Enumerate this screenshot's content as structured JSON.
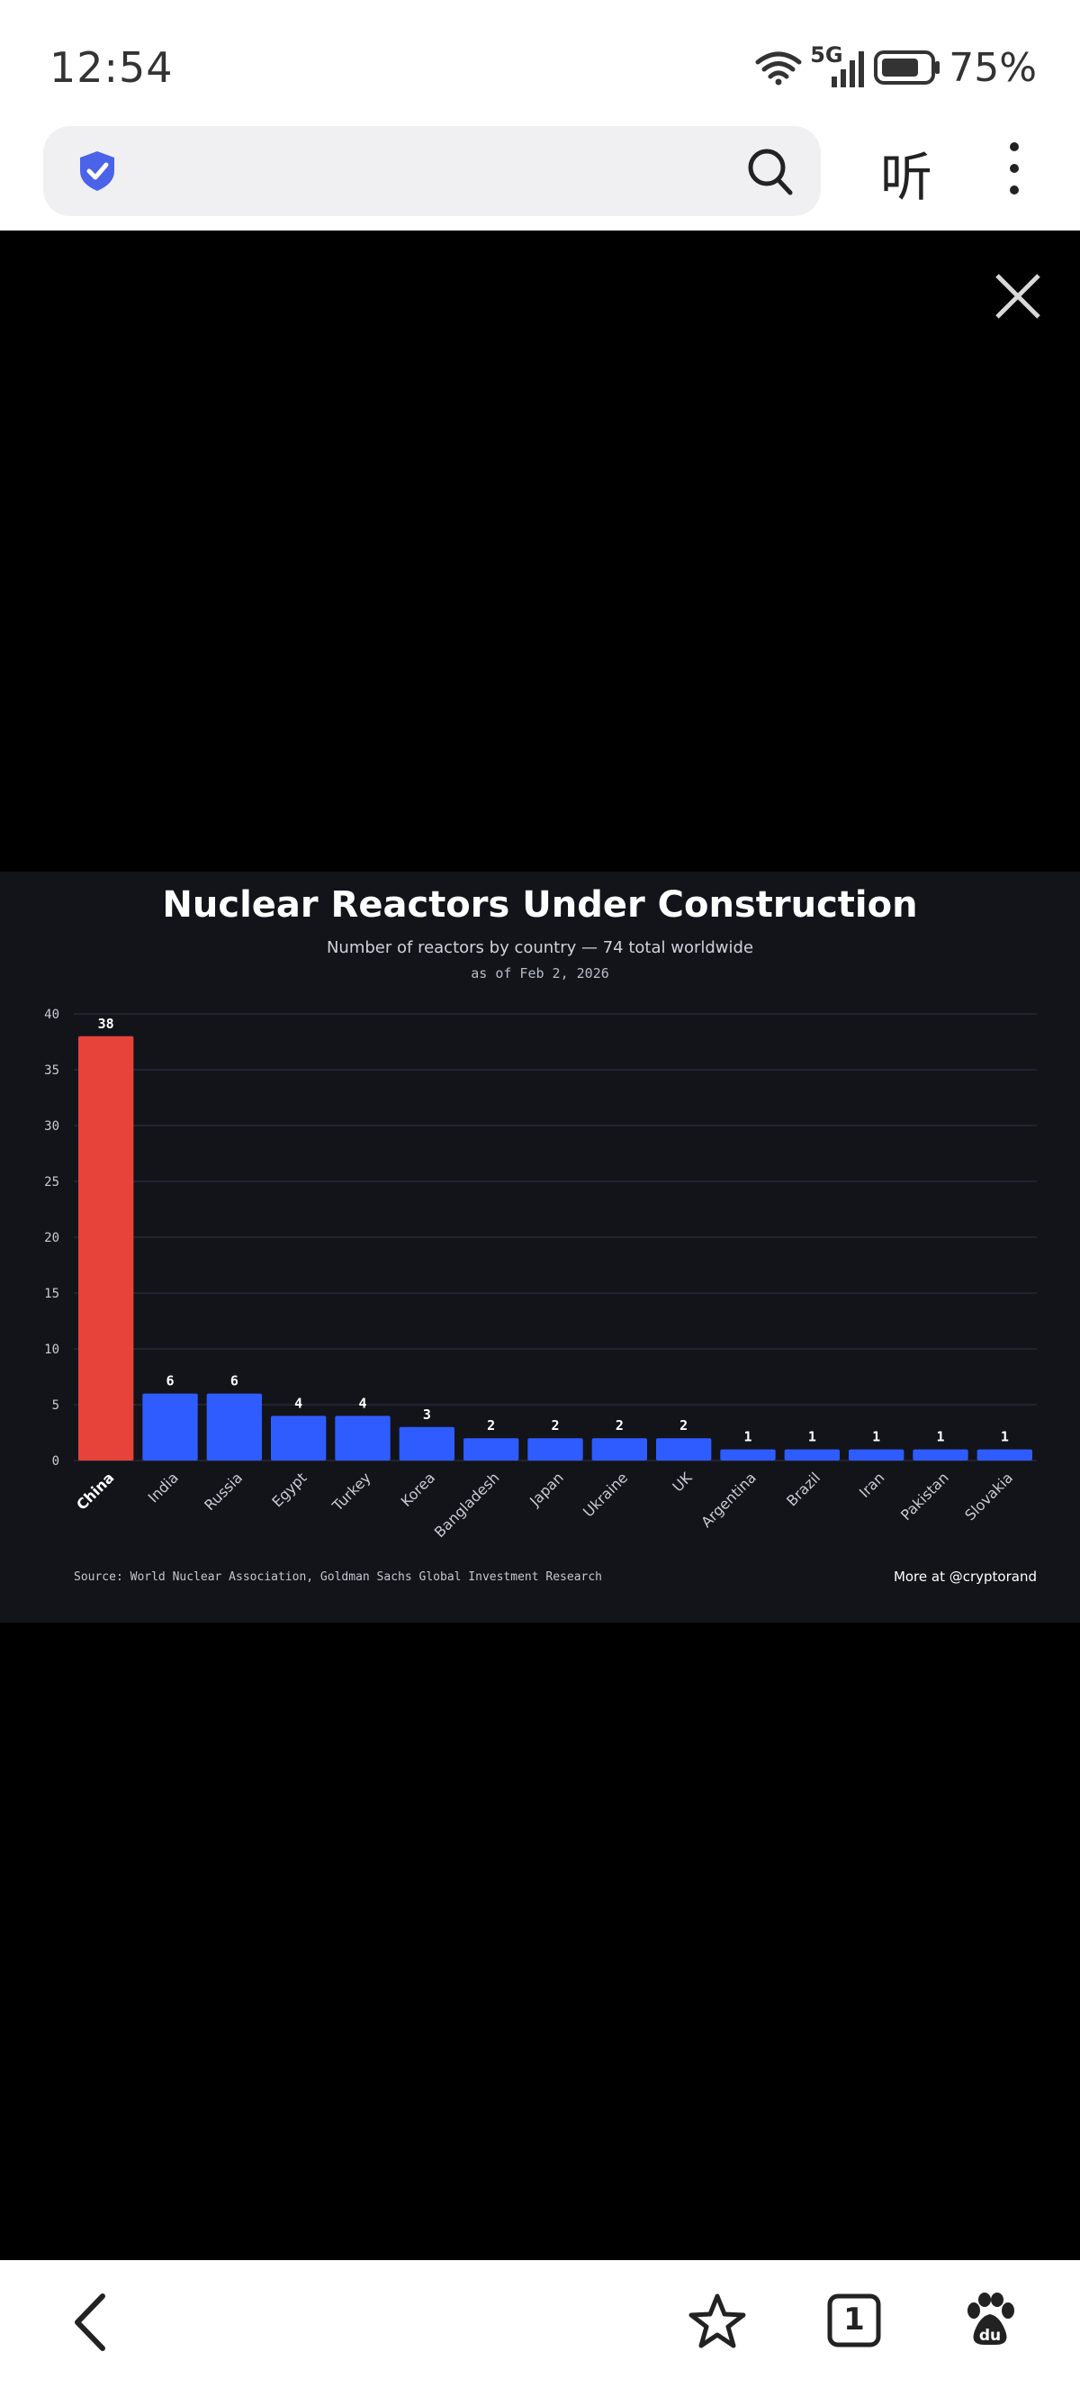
{
  "status_bar": {
    "time": "12:54",
    "network": "5G",
    "battery_percent": "75%",
    "icons": [
      "wifi-icon",
      "signal-icon",
      "battery-icon"
    ]
  },
  "address_bar": {
    "listen_label": "听",
    "icons": [
      "shield-icon",
      "search-icon",
      "more-icon"
    ]
  },
  "viewer": {
    "icons": [
      "close-icon"
    ]
  },
  "chart_data": {
    "type": "bar",
    "title": "Nuclear Reactors Under Construction",
    "subtitle": "Number of reactors by country — 74 total worldwide",
    "date_note": "as of Feb 2, 2026",
    "categories": [
      "China",
      "India",
      "Russia",
      "Egypt",
      "Turkey",
      "Korea",
      "Bangladesh",
      "Japan",
      "Ukraine",
      "UK",
      "Argentina",
      "Brazil",
      "Iran",
      "Pakistan",
      "Slovakia"
    ],
    "values": [
      38,
      6,
      6,
      4,
      4,
      3,
      2,
      2,
      2,
      2,
      1,
      1,
      1,
      1,
      1
    ],
    "highlight": "China",
    "ylim": [
      0,
      40
    ],
    "yticks": [
      0,
      5,
      10,
      15,
      20,
      25,
      30,
      35,
      40
    ],
    "xlabel": "",
    "ylabel": "",
    "grid": true,
    "colors": {
      "highlight": "#e8433a",
      "bar": "#2f5cff",
      "background": "#12141a",
      "grid": "#262a36"
    },
    "source": "Source: World Nuclear Association, Goldman Sachs Global Investment Research",
    "credit": "More at @cryptorand"
  },
  "bottom_nav": {
    "tab_count": "1",
    "icons": [
      "back-icon",
      "star-icon",
      "tabs-icon",
      "baidu-paw-icon"
    ]
  }
}
